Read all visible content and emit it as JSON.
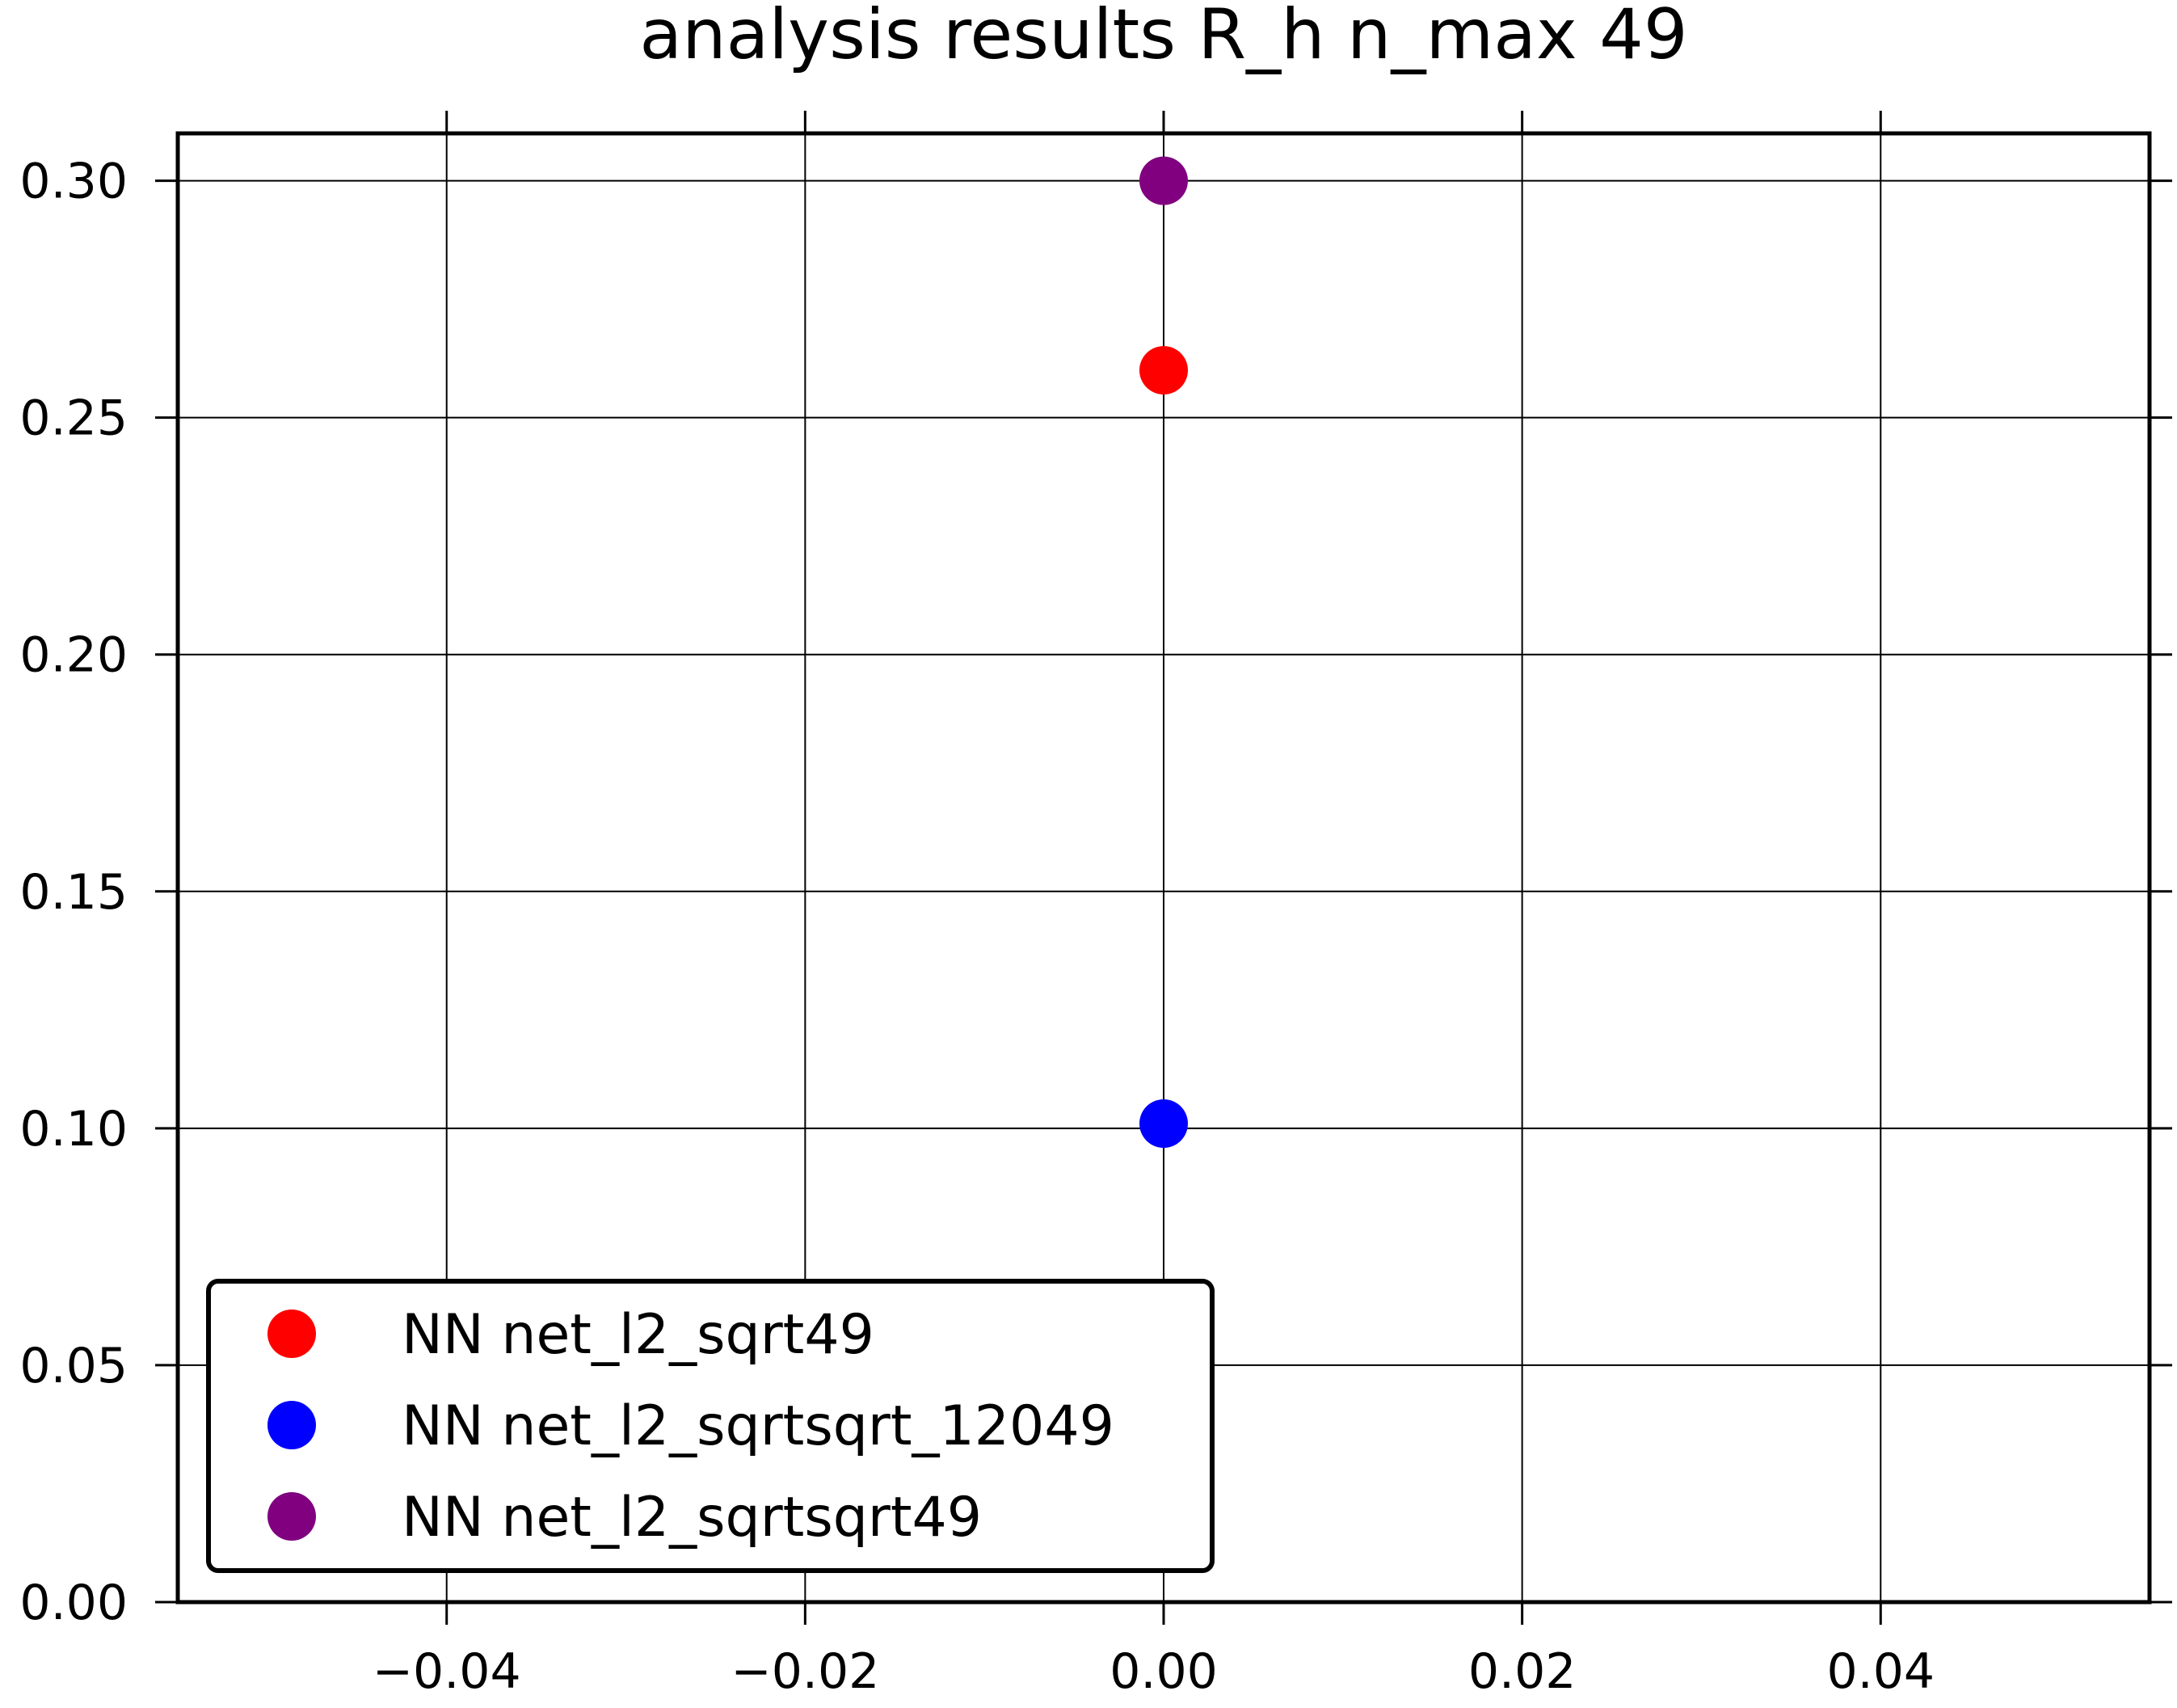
{
  "chart_data": {
    "type": "scatter",
    "title": "analysis results R_h  n_max 49",
    "xlabel": "",
    "ylabel": "",
    "xlim": [
      -0.055,
      0.055
    ],
    "ylim": [
      0.0,
      0.31
    ],
    "xticks": [
      -0.04,
      -0.02,
      0.0,
      0.02,
      0.04
    ],
    "xtick_labels": [
      "−0.04",
      "−0.02",
      "0.00",
      "0.02",
      "0.04"
    ],
    "yticks": [
      0.0,
      0.05,
      0.1,
      0.15,
      0.2,
      0.25,
      0.3
    ],
    "ytick_labels": [
      "0.00",
      "0.05",
      "0.10",
      "0.15",
      "0.20",
      "0.25",
      "0.30"
    ],
    "grid": true,
    "legend_position": "lower-left",
    "series": [
      {
        "name": "NN net_l2_sqrt49",
        "color": "#ff0000",
        "points": [
          [
            0.0,
            0.26
          ]
        ]
      },
      {
        "name": "NN net_l2_sqrtsqrt_12049",
        "color": "#0000ff",
        "points": [
          [
            0.0,
            0.101
          ]
        ]
      },
      {
        "name": "NN net_l2_sqrtsqrt49",
        "color": "#800080",
        "points": [
          [
            0.0,
            0.3
          ]
        ]
      }
    ]
  }
}
